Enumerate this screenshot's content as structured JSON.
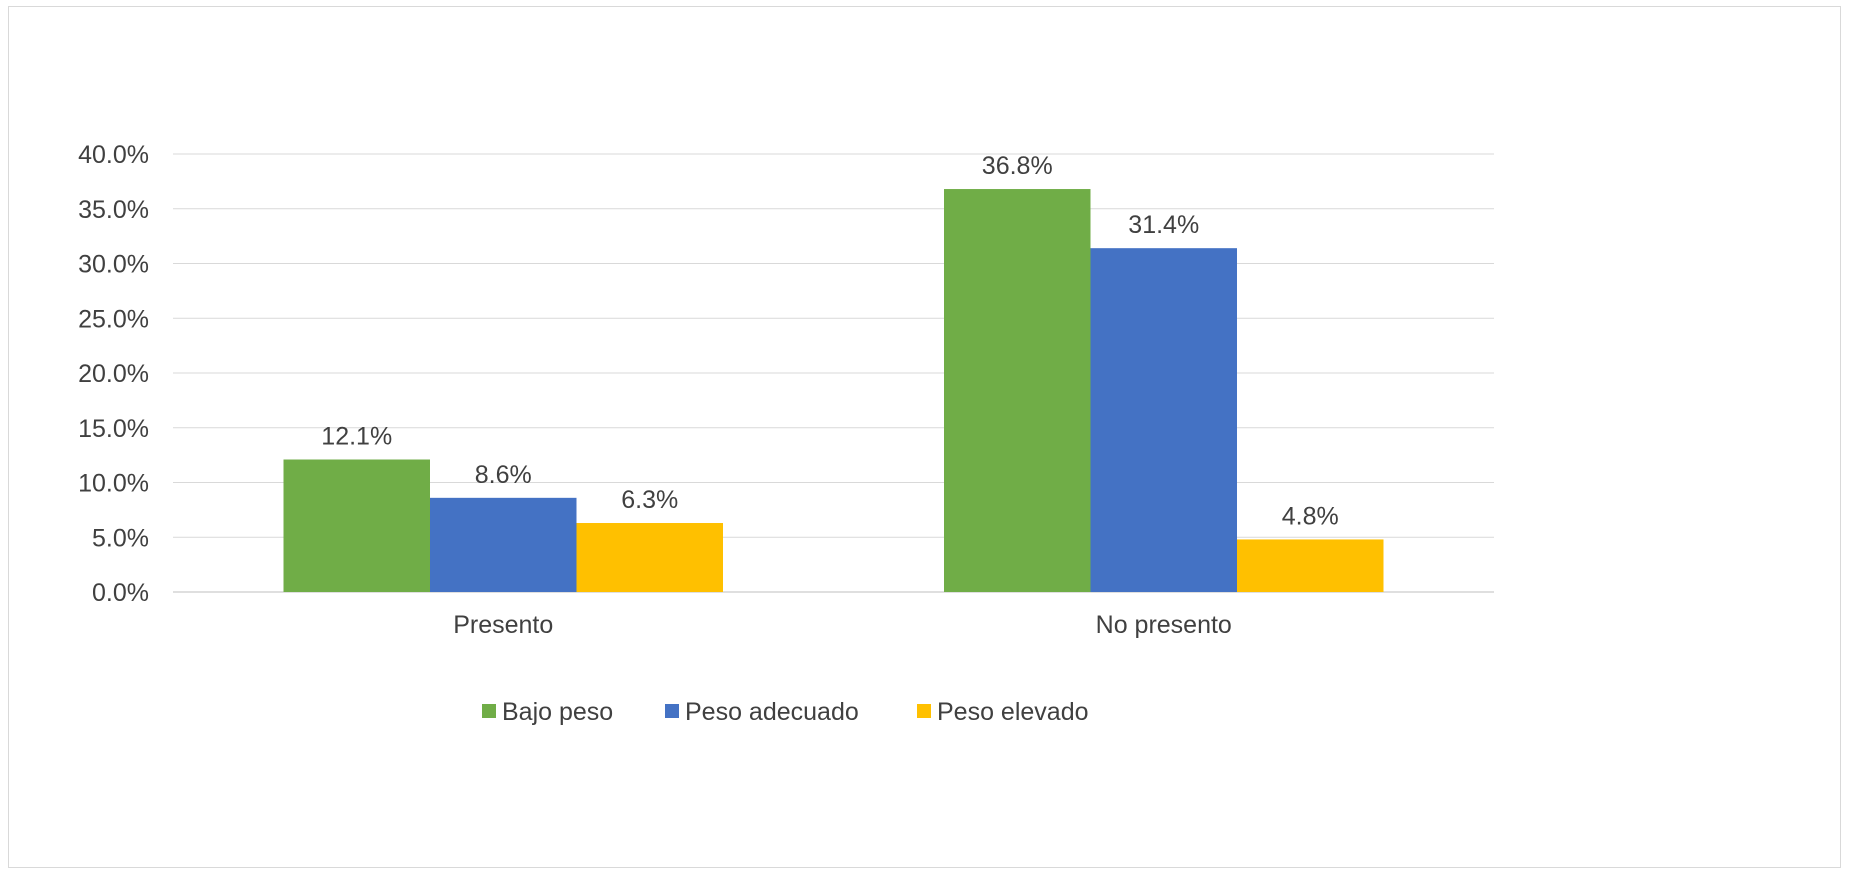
{
  "chart_data": {
    "type": "bar",
    "categories": [
      "Presento",
      "No presento"
    ],
    "series": [
      {
        "name": "Bajo peso",
        "color": "#70ad47",
        "values": [
          12.1,
          36.8
        ],
        "labels": [
          "12.1%",
          "36.8%"
        ]
      },
      {
        "name": "Peso adecuado",
        "color": "#4472c4",
        "values": [
          8.6,
          31.4
        ],
        "labels": [
          "8.6%",
          "31.4%"
        ]
      },
      {
        "name": "Peso elevado",
        "color": "#ffc000",
        "values": [
          6.3,
          4.8
        ],
        "labels": [
          "6.3%",
          "4.8%"
        ]
      }
    ],
    "ylim": [
      0,
      40
    ],
    "yticks": [
      0,
      5,
      10,
      15,
      20,
      25,
      30,
      35,
      40
    ],
    "ytick_labels": [
      "0.0%",
      "5.0%",
      "10.0%",
      "15.0%",
      "20.0%",
      "25.0%",
      "30.0%",
      "35.0%",
      "40.0%"
    ],
    "grid": true,
    "legend_position": "bottom",
    "title": "",
    "xlabel": "",
    "ylabel": ""
  }
}
